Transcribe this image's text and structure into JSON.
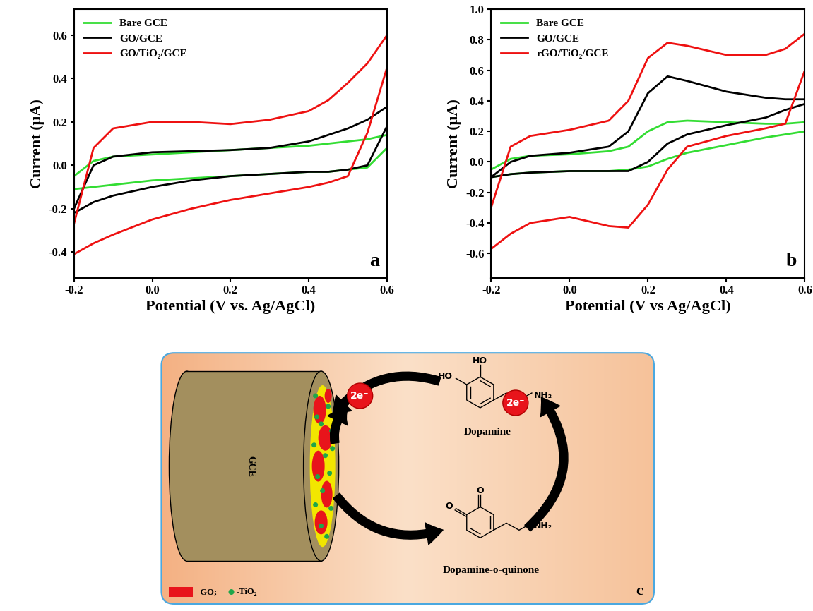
{
  "chart_data": [
    {
      "type": "line",
      "xlabel": "Potential (V vs. Ag/AgCl)",
      "ylabel": "Current (μA)",
      "xlim": [
        -0.2,
        0.6
      ],
      "ylim": [
        -0.52,
        0.72
      ],
      "xticks": [
        -0.2,
        0.0,
        0.2,
        0.4,
        0.6
      ],
      "yticks": [
        -0.4,
        -0.2,
        0.0,
        0.2,
        0.4,
        0.6
      ],
      "legend": "upper left",
      "annotations": [
        "a"
      ],
      "x": [
        -0.2,
        -0.15,
        -0.1,
        0.0,
        0.1,
        0.2,
        0.3,
        0.4,
        0.45,
        0.5,
        0.55,
        0.6,
        0.6,
        0.55,
        0.5,
        0.45,
        0.4,
        0.3,
        0.2,
        0.1,
        0.0,
        -0.1,
        -0.15,
        -0.2
      ],
      "series": [
        {
          "name": "Bare GCE",
          "color": "#33dd33",
          "values": [
            -0.05,
            0.02,
            0.04,
            0.05,
            0.06,
            0.07,
            0.08,
            0.09,
            0.1,
            0.11,
            0.12,
            0.14,
            0.08,
            -0.01,
            -0.02,
            -0.03,
            -0.03,
            -0.04,
            -0.05,
            -0.06,
            -0.07,
            -0.09,
            -0.1,
            -0.11
          ]
        },
        {
          "name": "GO/GCE",
          "color": "#000000",
          "values": [
            -0.2,
            0.0,
            0.04,
            0.06,
            0.065,
            0.07,
            0.08,
            0.11,
            0.14,
            0.17,
            0.21,
            0.27,
            0.18,
            0.0,
            -0.02,
            -0.03,
            -0.03,
            -0.04,
            -0.05,
            -0.07,
            -0.1,
            -0.14,
            -0.17,
            -0.22
          ]
        },
        {
          "name": "GO/TiO₂/GCE",
          "color": "#ee1111",
          "values": [
            -0.27,
            0.08,
            0.17,
            0.2,
            0.2,
            0.19,
            0.21,
            0.25,
            0.3,
            0.38,
            0.47,
            0.6,
            0.45,
            0.15,
            -0.05,
            -0.08,
            -0.1,
            -0.13,
            -0.16,
            -0.2,
            -0.25,
            -0.32,
            -0.36,
            -0.41
          ]
        }
      ]
    },
    {
      "type": "line",
      "xlabel": "Potential (V vs Ag/AgCl)",
      "ylabel": "Current (μA)",
      "xlim": [
        -0.2,
        0.6
      ],
      "ylim": [
        -0.76,
        1.0
      ],
      "xticks": [
        -0.2,
        0.0,
        0.2,
        0.4,
        0.6
      ],
      "yticks": [
        -0.6,
        -0.4,
        -0.2,
        0.0,
        0.2,
        0.4,
        0.6,
        0.8,
        1.0
      ],
      "legend": "upper left",
      "annotations": [
        "b"
      ],
      "x": [
        -0.2,
        -0.15,
        -0.1,
        0.0,
        0.1,
        0.15,
        0.2,
        0.25,
        0.3,
        0.4,
        0.5,
        0.55,
        0.6,
        0.6,
        0.55,
        0.5,
        0.4,
        0.3,
        0.25,
        0.2,
        0.15,
        0.1,
        0.0,
        -0.1,
        -0.15,
        -0.2
      ],
      "series": [
        {
          "name": "Bare GCE",
          "color": "#33dd33",
          "values": [
            -0.05,
            0.02,
            0.04,
            0.05,
            0.07,
            0.1,
            0.2,
            0.26,
            0.27,
            0.26,
            0.25,
            0.25,
            0.26,
            0.2,
            0.18,
            0.16,
            0.11,
            0.06,
            0.02,
            -0.03,
            -0.05,
            -0.06,
            -0.06,
            -0.07,
            -0.08,
            -0.1
          ]
        },
        {
          "name": "GO/GCE",
          "color": "#000000",
          "values": [
            -0.1,
            0.0,
            0.04,
            0.06,
            0.1,
            0.2,
            0.45,
            0.56,
            0.53,
            0.46,
            0.42,
            0.41,
            0.41,
            0.38,
            0.34,
            0.29,
            0.24,
            0.18,
            0.12,
            0.0,
            -0.06,
            -0.06,
            -0.06,
            -0.07,
            -0.08,
            -0.1
          ]
        },
        {
          "name": "rGO/TiO₂/GCE",
          "color": "#ee1111",
          "values": [
            -0.3,
            0.1,
            0.17,
            0.21,
            0.27,
            0.4,
            0.68,
            0.78,
            0.76,
            0.7,
            0.7,
            0.74,
            0.84,
            0.6,
            0.25,
            0.22,
            0.17,
            0.1,
            -0.05,
            -0.28,
            -0.43,
            -0.42,
            -0.36,
            -0.4,
            -0.47,
            -0.57
          ]
        }
      ]
    }
  ],
  "diagram": {
    "label": "c",
    "electrode": "GCE",
    "electron_labels": [
      "2e⁻",
      "2e⁻"
    ],
    "molecules": [
      {
        "name": "Dopamine",
        "atoms": [
          "HO",
          "HO",
          "NH₂"
        ]
      },
      {
        "name": "Dopamine-o-quinone",
        "atoms": [
          "O",
          "O",
          "NH₂"
        ]
      }
    ],
    "legend": [
      {
        "text": "- GO;",
        "color": "#e8141b"
      },
      {
        "text": "-TiO₂",
        "color": "#1fa64a"
      }
    ]
  }
}
